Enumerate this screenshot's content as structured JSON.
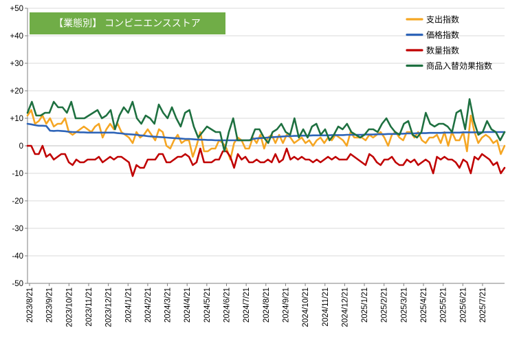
{
  "chart_data": {
    "type": "line",
    "title": "【業態別】 コンビニエンスストア",
    "title_bg": "#70ad47",
    "ylim": [
      -50,
      50
    ],
    "yticks": [
      50,
      40,
      30,
      20,
      10,
      0,
      -10,
      -20,
      -30,
      -40,
      -50
    ],
    "ytick_labels": [
      "+50",
      "+40",
      "+30",
      "+20",
      "+10",
      "0",
      "-10",
      "-20",
      "-30",
      "-40",
      "-50"
    ],
    "x_tick_labels": [
      "2023/8/21",
      "2023/9/21",
      "2023/10/21",
      "2023/11/21",
      "2023/12/21",
      "2024/1/21",
      "2024/2/21",
      "2024/3/21",
      "2024/4/21",
      "2024/5/21",
      "2024/6/21",
      "2024/7/21",
      "2024/8/21",
      "2024/9/21",
      "2024/10/21",
      "2024/11/21",
      "2024/12/21",
      "2025/1/21",
      "2025/2/21",
      "2025/3/21",
      "2025/4/21",
      "2025/5/21",
      "2025/6/21",
      "2025/7/21"
    ],
    "grid": "horizontal",
    "legend": "top-right",
    "series": [
      {
        "name": "支出指数",
        "color": "#f5a623",
        "values": [
          11,
          13,
          8,
          9,
          11,
          8,
          10,
          7,
          8,
          8,
          10,
          5,
          4,
          5,
          6,
          7,
          6,
          5,
          7,
          8,
          3,
          6,
          8,
          6,
          8,
          5,
          4,
          3,
          1,
          5,
          3,
          4,
          6,
          4,
          2,
          6,
          5,
          0,
          -1,
          2,
          4,
          1,
          2,
          2,
          -4,
          0,
          5,
          -2,
          -2,
          -1,
          -1,
          2,
          1,
          -1,
          -5,
          1,
          3,
          2,
          -1,
          -1,
          3,
          1,
          4,
          -1,
          3,
          4,
          1,
          4,
          1,
          4,
          3,
          1,
          2,
          3,
          1,
          2,
          0,
          2,
          3,
          1,
          3,
          2,
          4,
          3,
          2,
          0,
          5,
          3,
          3,
          3,
          2,
          4,
          3,
          4,
          5,
          3,
          0,
          4,
          5,
          3,
          2,
          5,
          5,
          3,
          5,
          2,
          1,
          3,
          3,
          4,
          1,
          5,
          0,
          5,
          2,
          2,
          5,
          -2,
          11,
          5,
          1,
          3,
          4,
          3,
          1,
          2,
          -3,
          0
        ]
      },
      {
        "name": "価格指数",
        "color": "#2e64b8",
        "values": [
          8,
          7.8,
          7.5,
          7.3,
          7.3,
          7.2,
          5.5,
          5.4,
          5.5,
          5.4,
          5.3,
          5.1,
          5.0,
          5.0,
          4.9,
          4.9,
          4.8,
          4.8,
          4.8,
          4.8,
          4.8,
          4.8,
          4.8,
          4.8,
          4.6,
          4.5,
          4.3,
          4.2,
          4.1,
          4.0,
          3.8,
          3.7,
          3.5,
          3.4,
          3.3,
          3.2,
          3.1,
          3.0,
          2.9,
          2.8,
          2.7,
          2.6,
          2.5,
          2.5,
          2.4,
          2.3,
          2.2,
          2.2,
          2.1,
          2.1,
          2.0,
          2.0,
          2.0,
          2.0,
          2.0,
          2.0,
          2.0,
          2.0,
          2.0,
          2.0,
          2.5,
          2.7,
          2.8,
          2.9,
          3.0,
          3.1,
          3.2,
          3.3,
          3.4,
          3.5,
          3.5,
          3.6,
          3.6,
          3.7,
          3.7,
          3.7,
          3.8,
          3.8,
          3.8,
          3.8,
          3.8,
          3.9,
          3.9,
          3.9,
          3.9,
          4.0,
          4.0,
          4.0,
          4.0,
          4.0,
          4.1,
          4.1,
          4.1,
          4.2,
          4.2,
          4.2,
          4.3,
          4.3,
          4.3,
          4.4,
          4.4,
          4.5,
          4.5,
          4.5,
          4.6,
          4.6,
          4.6,
          4.7,
          4.7,
          4.7,
          4.7,
          4.8,
          4.8,
          4.8,
          4.8,
          4.8,
          4.9,
          4.9,
          4.9,
          4.9,
          4.9,
          4.9,
          5.0,
          5.0,
          5.0,
          5.0,
          5.0,
          5.0
        ]
      },
      {
        "name": "数量指数",
        "color": "#c00000",
        "values": [
          0,
          0,
          -3,
          -3,
          0,
          -4,
          -3,
          -5,
          -4,
          -3,
          -3,
          -6,
          -7,
          -5,
          -6,
          -6,
          -5,
          -5,
          -5,
          -4,
          -6,
          -5,
          -4,
          -5,
          -4,
          -4,
          -5,
          -6,
          -11,
          -7,
          -8,
          -8,
          -5,
          -5,
          -5,
          -3,
          -3,
          -6,
          -6,
          -5,
          -4,
          -4,
          -3,
          -4,
          -7,
          -6,
          -1,
          -6,
          -6,
          -6,
          -5,
          -5,
          -2,
          -2,
          -4,
          -8,
          -3,
          -5,
          -4,
          -6,
          -6,
          -5,
          -6,
          -6,
          -5,
          -6,
          -3,
          -6,
          -5,
          -1,
          -5,
          -4,
          -5,
          -4,
          -5,
          -5,
          -6,
          -5,
          -6,
          -5,
          -4,
          -5,
          -4,
          -5,
          -5,
          -5,
          -3,
          -4,
          -5,
          -6,
          -7,
          -3,
          -4,
          -6,
          -7,
          -5,
          -5,
          -4,
          -6,
          -7,
          -7,
          -5,
          -6,
          -5,
          -7,
          -6,
          -5,
          -6,
          -10,
          -4,
          -5,
          -4,
          -5,
          -5,
          -6,
          -8,
          -5,
          -6,
          -10,
          -4,
          -5,
          -3,
          -4,
          -5,
          -7,
          -6,
          -10,
          -8
        ]
      },
      {
        "name": "商品入替効果指数",
        "color": "#1e7040",
        "values": [
          12,
          16,
          11,
          11,
          12,
          12,
          16,
          14,
          14,
          12,
          16,
          10,
          10,
          10,
          11,
          12,
          13,
          10,
          11,
          13,
          6,
          11,
          14,
          12,
          16,
          10,
          8,
          11,
          10,
          8,
          15,
          12,
          10,
          14,
          10,
          7,
          12,
          13,
          7,
          3,
          5,
          7,
          6,
          5,
          5,
          -2,
          5,
          10,
          2,
          2,
          2,
          2,
          6,
          6,
          3,
          1,
          5,
          6,
          8,
          5,
          4,
          10,
          3,
          6,
          3,
          7,
          8,
          4,
          6,
          2,
          4,
          7,
          6,
          8,
          5,
          4,
          3,
          4,
          6,
          6,
          5,
          8,
          10,
          7,
          5,
          4,
          8,
          9,
          4,
          3,
          5,
          12,
          8,
          7,
          8,
          8,
          7,
          5,
          12,
          13,
          6,
          17,
          9,
          4,
          5,
          9,
          6,
          5,
          2,
          5
        ]
      }
    ]
  }
}
